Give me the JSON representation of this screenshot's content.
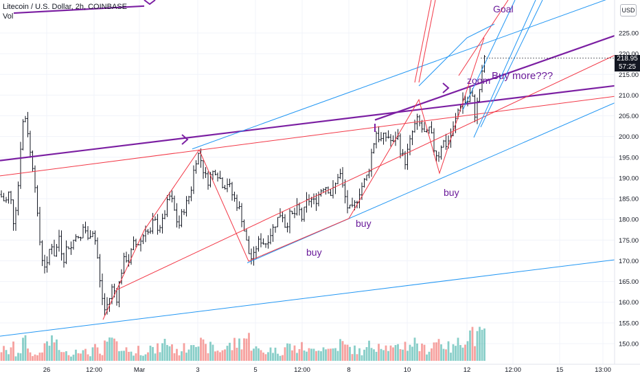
{
  "header": {
    "symbol": "Litecoin / U.S. Dollar, 2h, COINBASE",
    "indicator": "Vol"
  },
  "currency_button": "USD",
  "last_price": {
    "price": "218.95",
    "countdown": "57:25"
  },
  "colors": {
    "up": "#26a69a",
    "down": "#ef5350",
    "candle": "#131722",
    "purple": "#7b1fa2",
    "red_line": "#f23645",
    "blue_line": "#2196f3",
    "annotation": "#6a1b9a",
    "axis_text": "#131722",
    "grid": "#f0f3fa"
  },
  "chart_data": {
    "type": "ohlc",
    "price_axis": {
      "ticks": [
        "225.00",
        "220.00",
        "215.00",
        "210.00",
        "205.00",
        "200.00",
        "195.00",
        "190.00",
        "185.00",
        "180.00",
        "175.00",
        "170.00",
        "165.00",
        "160.00",
        "155.00",
        "150.00"
      ],
      "ylim": [
        147,
        229
      ]
    },
    "time_axis": {
      "ticks": [
        "26",
        "12:00",
        "Mar",
        "3",
        "5",
        "12:00",
        "8",
        "10",
        "12",
        "12:00",
        "15",
        "13:00"
      ]
    },
    "price_path": [
      [
        0,
        186
      ],
      [
        8,
        184
      ],
      [
        14,
        187
      ],
      [
        20,
        179
      ],
      [
        26,
        187
      ],
      [
        32,
        203
      ],
      [
        38,
        205
      ],
      [
        44,
        196
      ],
      [
        50,
        191
      ],
      [
        56,
        177
      ],
      [
        62,
        170
      ],
      [
        68,
        168
      ],
      [
        74,
        175
      ],
      [
        80,
        171
      ],
      [
        86,
        176
      ],
      [
        92,
        170
      ],
      [
        98,
        174
      ],
      [
        104,
        173
      ],
      [
        110,
        177
      ],
      [
        116,
        174
      ],
      [
        122,
        179
      ],
      [
        128,
        175
      ],
      [
        134,
        178
      ],
      [
        140,
        174
      ],
      [
        146,
        164
      ],
      [
        152,
        158
      ],
      [
        158,
        160
      ],
      [
        164,
        164
      ],
      [
        170,
        161
      ],
      [
        176,
        167
      ],
      [
        182,
        171
      ],
      [
        188,
        170
      ],
      [
        194,
        174
      ],
      [
        200,
        174
      ],
      [
        206,
        175
      ],
      [
        212,
        178
      ],
      [
        218,
        176
      ],
      [
        224,
        180
      ],
      [
        230,
        178
      ],
      [
        236,
        179
      ],
      [
        242,
        183
      ],
      [
        248,
        186
      ],
      [
        254,
        182
      ],
      [
        260,
        178
      ],
      [
        266,
        182
      ],
      [
        272,
        184
      ],
      [
        278,
        187
      ],
      [
        284,
        194
      ],
      [
        290,
        196
      ],
      [
        296,
        192
      ],
      [
        302,
        189
      ],
      [
        308,
        191
      ],
      [
        314,
        192
      ],
      [
        320,
        190
      ],
      [
        326,
        188
      ],
      [
        332,
        189
      ],
      [
        338,
        186
      ],
      [
        344,
        184
      ],
      [
        350,
        182
      ],
      [
        356,
        177
      ],
      [
        362,
        172
      ],
      [
        368,
        170
      ],
      [
        374,
        174
      ],
      [
        380,
        175
      ],
      [
        386,
        174
      ],
      [
        392,
        176
      ],
      [
        398,
        178
      ],
      [
        404,
        180
      ],
      [
        410,
        182
      ],
      [
        416,
        178
      ],
      [
        422,
        181
      ],
      [
        428,
        181
      ],
      [
        434,
        183
      ],
      [
        440,
        180
      ],
      [
        446,
        184
      ],
      [
        452,
        185
      ],
      [
        458,
        184
      ],
      [
        464,
        186
      ],
      [
        470,
        188
      ],
      [
        476,
        188
      ],
      [
        482,
        186
      ],
      [
        488,
        188
      ],
      [
        494,
        192
      ],
      [
        500,
        187
      ],
      [
        506,
        183
      ],
      [
        512,
        182
      ],
      [
        518,
        184
      ],
      [
        524,
        187
      ],
      [
        530,
        189
      ],
      [
        536,
        191
      ],
      [
        542,
        197
      ],
      [
        548,
        201
      ],
      [
        554,
        199
      ],
      [
        560,
        200
      ],
      [
        566,
        200
      ],
      [
        572,
        198
      ],
      [
        578,
        201
      ],
      [
        584,
        196
      ],
      [
        590,
        194
      ],
      [
        596,
        198
      ],
      [
        602,
        202
      ],
      [
        608,
        204
      ],
      [
        614,
        202
      ],
      [
        620,
        200
      ],
      [
        626,
        202
      ],
      [
        632,
        197
      ],
      [
        638,
        195
      ],
      [
        644,
        199
      ],
      [
        650,
        198
      ],
      [
        656,
        200
      ],
      [
        662,
        203
      ],
      [
        668,
        207
      ],
      [
        674,
        209
      ],
      [
        680,
        208
      ],
      [
        686,
        211
      ],
      [
        692,
        205
      ],
      [
        698,
        211
      ],
      [
        702,
        215
      ],
      [
        706,
        220
      ],
      [
        708,
        219
      ]
    ],
    "volume": [
      18,
      14,
      22,
      10,
      16,
      30,
      26,
      12,
      9,
      14,
      20,
      28,
      34,
      24,
      18,
      12,
      16,
      10,
      22,
      18,
      14,
      12,
      20,
      16,
      10,
      24,
      36,
      30,
      22,
      28,
      18,
      16,
      12,
      20,
      14,
      18,
      22,
      16,
      20,
      24,
      30,
      26,
      18,
      14,
      20,
      22,
      34,
      40,
      28,
      24,
      20,
      22,
      18,
      16,
      20,
      24,
      22,
      28,
      30,
      38,
      36,
      26,
      20,
      16,
      14,
      18,
      20,
      16,
      14,
      22,
      24,
      20,
      18,
      22,
      20,
      16,
      18,
      24,
      22,
      26,
      18,
      20,
      24,
      28,
      22,
      20,
      18,
      16,
      14,
      20,
      24,
      26,
      30,
      28,
      22,
      20,
      18,
      22,
      26,
      24,
      28,
      30,
      22,
      20,
      18,
      24,
      30,
      34,
      26,
      22,
      20,
      28,
      30,
      38,
      44,
      50,
      36,
      40,
      56
    ],
    "annotations": [
      "Goal",
      "Buy more???",
      "zoom",
      "buy",
      "buy",
      "buy"
    ],
    "lines": [
      {
        "name": "purple-channel-top",
        "color": "purple",
        "from": [
          0,
          194.2
        ],
        "to": [
          932,
          213.0
        ]
      },
      {
        "name": "purple-channel-mid",
        "color": "purple",
        "from": [
          546,
          204.0
        ],
        "to": [
          932,
          226.5
        ]
      },
      {
        "name": "purple-top-left",
        "color": "purple",
        "from": [
          20,
          229.8
        ],
        "to": [
          210,
          231.5
        ]
      },
      {
        "name": "red-long-line",
        "color": "red_line",
        "from": [
          0,
          190.5
        ],
        "to": [
          932,
          210.5
        ]
      },
      {
        "name": "red-upper-line",
        "color": "red_line",
        "from": [
          170,
          163.0
        ],
        "to": [
          932,
          222.5
        ]
      },
      {
        "name": "blue-upper-channel",
        "color": "blue_line",
        "from": [
          280,
          197.0
        ],
        "to": [
          932,
          236.0
        ]
      },
      {
        "name": "blue-lower-channel",
        "color": "blue_line",
        "from": [
          360,
          169.5
        ],
        "to": [
          932,
          210.8
        ]
      },
      {
        "name": "blue-bottom-line",
        "color": "blue_line",
        "from": [
          0,
          151.8
        ],
        "to": [
          932,
          171.0
        ]
      }
    ]
  }
}
